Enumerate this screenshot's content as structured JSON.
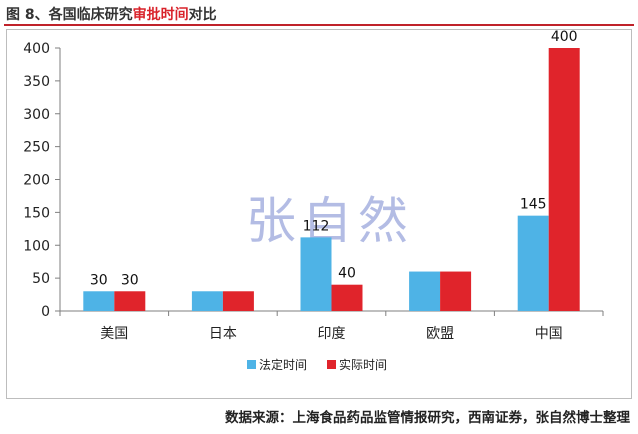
{
  "header": {
    "prefix": "图 8、各国临床研究",
    "highlight": "审批时间",
    "suffix": "对比"
  },
  "watermark": "张自然",
  "source": "数据来源：上海食品药品监管情报研究，西南证券，张自然博士整理",
  "colors": {
    "statutory": "#4eb3e6",
    "actual": "#e0242b",
    "title_highlight": "#d9232b"
  },
  "chart_data": {
    "type": "bar",
    "title": "",
    "xlabel": "",
    "ylabel": "",
    "ylim": [
      0,
      400
    ],
    "yticks": [
      0,
      50,
      100,
      150,
      200,
      250,
      300,
      350,
      400
    ],
    "categories": [
      "美国",
      "日本",
      "印度",
      "欧盟",
      "中国"
    ],
    "series": [
      {
        "name": "法定时间",
        "values": [
          30,
          30,
          112,
          60,
          145
        ],
        "labels": [
          "30",
          "",
          "112",
          "",
          "145"
        ]
      },
      {
        "name": "实际时间",
        "values": [
          30,
          30,
          40,
          60,
          400
        ],
        "labels": [
          "30",
          "",
          "40",
          "",
          "400"
        ]
      }
    ],
    "legend_position": "bottom",
    "grid": false
  }
}
